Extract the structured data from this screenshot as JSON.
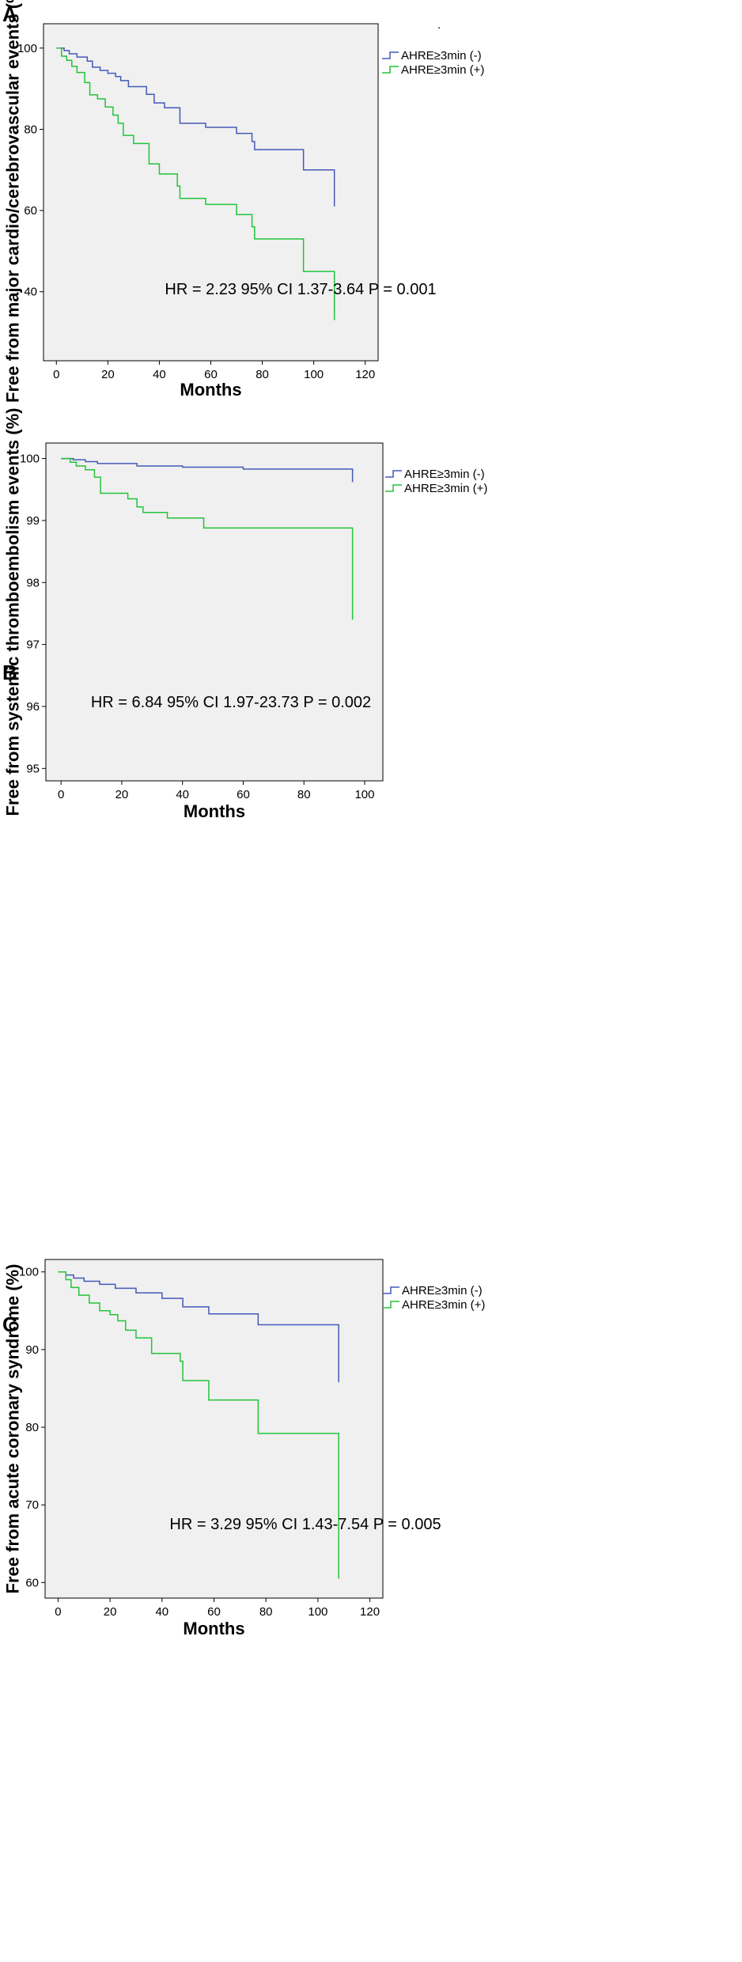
{
  "colors": {
    "negative": "#4458b8",
    "positive": "#22c43a",
    "plot_background": "#f0f0f0"
  },
  "chart_data": [
    {
      "panel": "A",
      "type": "line",
      "subtype": "kaplan-meier",
      "xlabel": "Months",
      "ylabel": "Free from major cardio/cerebrovascular events (%)",
      "xlim": [
        -5,
        125
      ],
      "ylim": [
        23,
        106
      ],
      "xticks": [
        0,
        20,
        40,
        60,
        80,
        100,
        120
      ],
      "yticks": [
        40,
        60,
        80,
        100
      ],
      "annotation": "HR = 2.23 95% CI 1.37-3.64 P = 0.001",
      "legend_position": "right, outside plot",
      "stray_mark": ".",
      "series": [
        {
          "name": "AHRE≥3min (-)",
          "color": "#4458b8",
          "x": [
            0,
            3,
            5,
            8,
            12,
            14,
            17,
            20,
            23,
            25,
            28,
            35,
            38,
            42,
            48,
            58,
            70,
            76,
            77,
            96,
            108,
            108
          ],
          "y": [
            100,
            99.4,
            98.6,
            97.8,
            96.8,
            95.3,
            94.5,
            93.8,
            93.0,
            92.0,
            90.5,
            88.6,
            86.5,
            85.3,
            81.5,
            80.5,
            79.0,
            77.0,
            75.0,
            70.0,
            70.0,
            61.0
          ]
        },
        {
          "name": "AHRE≥3min (+)",
          "color": "#22c43a",
          "x": [
            0,
            2,
            4,
            6,
            8,
            11,
            13,
            16,
            19,
            22,
            24,
            26,
            30,
            36,
            40,
            47,
            48,
            58,
            70,
            76,
            77,
            96,
            108,
            108
          ],
          "y": [
            100,
            98.0,
            97.0,
            95.5,
            94.0,
            91.5,
            88.5,
            87.5,
            85.5,
            83.5,
            81.5,
            78.5,
            76.5,
            71.5,
            69.0,
            66.0,
            63.0,
            61.5,
            59.0,
            56.0,
            53.0,
            45.0,
            45.0,
            33.0
          ]
        }
      ]
    },
    {
      "panel": "B",
      "type": "line",
      "subtype": "kaplan-meier",
      "xlabel": "Months",
      "ylabel": "Free from systemic thromboembolism events (%)",
      "xlim": [
        -5,
        106
      ],
      "ylim": [
        94.8,
        100.25
      ],
      "xticks": [
        0,
        20,
        40,
        60,
        80,
        100
      ],
      "yticks": [
        95,
        96,
        97,
        98,
        99,
        100
      ],
      "annotation": "HR = 6.84 95% CI 1.97-23.73 P = 0.002",
      "legend_position": "right, outside plot",
      "series": [
        {
          "name": "AHRE≥3min (-)",
          "color": "#4458b8",
          "x": [
            0,
            4,
            8,
            12,
            25,
            40,
            60,
            96,
            96
          ],
          "y": [
            100,
            99.98,
            99.95,
            99.92,
            99.88,
            99.86,
            99.83,
            99.83,
            99.62
          ]
        },
        {
          "name": "AHRE≥3min (+)",
          "color": "#22c43a",
          "x": [
            0,
            3,
            5,
            8,
            11,
            13,
            22,
            25,
            27,
            35,
            47,
            96,
            96
          ],
          "y": [
            100,
            99.94,
            99.88,
            99.82,
            99.7,
            99.44,
            99.35,
            99.22,
            99.13,
            99.04,
            98.88,
            98.88,
            97.4
          ]
        }
      ]
    },
    {
      "panel": "C",
      "type": "line",
      "subtype": "kaplan-meier",
      "xlabel": "Months",
      "ylabel": "Free from acute coronary syndrome (%)",
      "xlim": [
        -5,
        125
      ],
      "ylim": [
        58,
        101.6
      ],
      "xticks": [
        0,
        20,
        40,
        60,
        80,
        100,
        120
      ],
      "yticks": [
        60,
        70,
        80,
        90,
        100
      ],
      "annotation": "HR = 3.29 95% CI 1.43-7.54 P = 0.005",
      "legend_position": "right, outside plot",
      "series": [
        {
          "name": "AHRE≥3min (-)",
          "color": "#4458b8",
          "x": [
            0,
            3,
            6,
            10,
            16,
            22,
            30,
            40,
            48,
            58,
            77,
            108,
            108
          ],
          "y": [
            100,
            99.6,
            99.2,
            98.8,
            98.4,
            97.9,
            97.3,
            96.6,
            95.5,
            94.6,
            93.2,
            93.2,
            85.8
          ]
        },
        {
          "name": "AHRE≥3min (+)",
          "color": "#22c43a",
          "x": [
            0,
            3,
            5,
            8,
            12,
            16,
            20,
            23,
            26,
            30,
            36,
            47,
            48,
            58,
            77,
            108,
            108
          ],
          "y": [
            100,
            99.0,
            98.0,
            97.0,
            96.0,
            95.0,
            94.5,
            93.7,
            92.5,
            91.5,
            89.5,
            88.5,
            86.0,
            83.5,
            79.2,
            79.2,
            60.5
          ]
        }
      ]
    }
  ]
}
